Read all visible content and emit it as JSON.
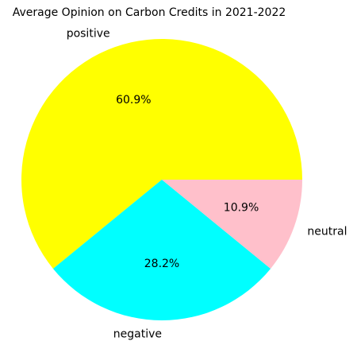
{
  "chart_data": {
    "type": "pie",
    "title": "Average Opinion on Carbon Credits in 2021-2022",
    "slices": [
      {
        "label": "positive",
        "value": 60.9,
        "pct_label": "60.9%",
        "color": "#ffff00"
      },
      {
        "label": "negative",
        "value": 28.2,
        "pct_label": "28.2%",
        "color": "#00ffff"
      },
      {
        "label": "neutral",
        "value": 10.9,
        "pct_label": "10.9%",
        "color": "#ffc0cb"
      }
    ],
    "start_angle_deg": 0,
    "direction": "counterclockwise"
  }
}
